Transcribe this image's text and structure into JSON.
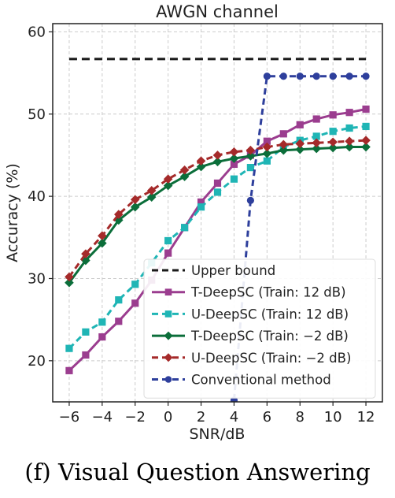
{
  "chart_data": {
    "type": "line",
    "title": "AWGN channel",
    "xlabel": "SNR/dB",
    "ylabel": "Accuracy (%)",
    "xlim": [
      -7,
      13
    ],
    "ylim": [
      15,
      61
    ],
    "xticks": [
      -6,
      -4,
      -2,
      0,
      2,
      4,
      6,
      8,
      10,
      12
    ],
    "yticks": [
      20,
      30,
      40,
      50,
      60
    ],
    "xtick_labels": [
      "−6",
      "−4",
      "−2",
      "0",
      "2",
      "4",
      "6",
      "8",
      "10",
      "12"
    ],
    "ytick_labels": [
      "20",
      "30",
      "40",
      "50",
      "60"
    ],
    "grid": true,
    "legend_position": "lower-right",
    "series": [
      {
        "name": "Upper bound",
        "color": "#1a1a1a",
        "dash": "dashed",
        "marker": "none",
        "x": [
          -6,
          12
        ],
        "y": [
          56.7,
          56.7
        ]
      },
      {
        "name": "T-DeepSC (Train: 12 dB)",
        "color": "#9b3d8f",
        "dash": "solid",
        "marker": "square",
        "x": [
          -6,
          -5,
          -4,
          -3,
          -2,
          -1,
          0,
          1,
          2,
          3,
          4,
          5,
          6,
          7,
          8,
          9,
          10,
          11,
          12
        ],
        "y": [
          18.8,
          20.7,
          22.9,
          24.8,
          27.0,
          29.8,
          33.1,
          36.2,
          39.3,
          41.6,
          43.9,
          45.0,
          46.7,
          47.6,
          48.7,
          49.4,
          49.9,
          50.2,
          50.6
        ]
      },
      {
        "name": "U-DeepSC (Train: 12 dB)",
        "color": "#1fb5b5",
        "dash": "dashed",
        "marker": "square",
        "x": [
          -6,
          -5,
          -4,
          -3,
          -2,
          -1,
          0,
          1,
          2,
          3,
          4,
          5,
          6,
          7,
          8,
          9,
          10,
          11,
          12
        ],
        "y": [
          21.5,
          23.5,
          24.7,
          27.4,
          29.3,
          31.9,
          34.6,
          36.2,
          38.7,
          40.5,
          42.1,
          43.5,
          44.3,
          46.0,
          46.8,
          47.3,
          47.9,
          48.3,
          48.5
        ]
      },
      {
        "name": "T-DeepSC (Train: −2 dB)",
        "color": "#0b6e3a",
        "dash": "solid",
        "marker": "diamond",
        "x": [
          -6,
          -5,
          -4,
          -3,
          -2,
          -1,
          0,
          1,
          2,
          3,
          4,
          5,
          6,
          7,
          8,
          9,
          10,
          11,
          12
        ],
        "y": [
          29.5,
          32.2,
          34.3,
          37.1,
          38.7,
          39.9,
          41.3,
          42.4,
          43.6,
          44.2,
          44.6,
          44.9,
          45.2,
          45.6,
          45.7,
          45.8,
          45.9,
          46.0,
          46.0
        ]
      },
      {
        "name": "U-DeepSC (Train: −2 dB)",
        "color": "#a52a2a",
        "dash": "dashed",
        "marker": "diamond",
        "x": [
          -6,
          -5,
          -4,
          -3,
          -2,
          -1,
          0,
          1,
          2,
          3,
          4,
          5,
          6,
          7,
          8,
          9,
          10,
          11,
          12
        ],
        "y": [
          30.2,
          33.0,
          35.2,
          37.8,
          39.6,
          40.7,
          42.1,
          43.2,
          44.3,
          45.0,
          45.4,
          45.6,
          46.0,
          46.3,
          46.4,
          46.5,
          46.6,
          46.7,
          46.8
        ]
      },
      {
        "name": "Conventional method",
        "color": "#2e3f9c",
        "dash": "dashed",
        "marker": "circle",
        "x": [
          4,
          5,
          6,
          7,
          8,
          9,
          10,
          11,
          12
        ],
        "y": [
          15.2,
          39.5,
          54.6,
          54.6,
          54.6,
          54.6,
          54.6,
          54.6,
          54.6
        ]
      }
    ]
  },
  "caption": "(f) Visual Question Answering"
}
